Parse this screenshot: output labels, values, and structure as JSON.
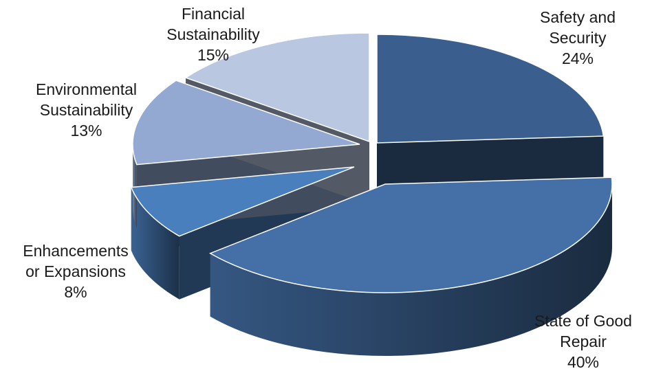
{
  "chart_data": {
    "type": "pie",
    "title": "",
    "style": "3d-exploded",
    "slices": [
      {
        "label_lines": [
          "Safety and",
          "Security"
        ],
        "value": 24,
        "percent_label": "24%",
        "color": "#3a5f8f"
      },
      {
        "label_lines": [
          "State of Good",
          "Repair"
        ],
        "value": 40,
        "percent_label": "40%",
        "color": "#4470a7"
      },
      {
        "label_lines": [
          "Enhancements",
          "or Expansions"
        ],
        "value": 8,
        "percent_label": "8%",
        "color": "#4a7fbd"
      },
      {
        "label_lines": [
          "Environmental",
          "Sustainability"
        ],
        "value": 13,
        "percent_label": "13%",
        "color": "#93a9d2"
      },
      {
        "label_lines": [
          "Financial",
          "Sustainability"
        ],
        "value": 15,
        "percent_label": "15%",
        "color": "#b9c7e0"
      }
    ]
  }
}
